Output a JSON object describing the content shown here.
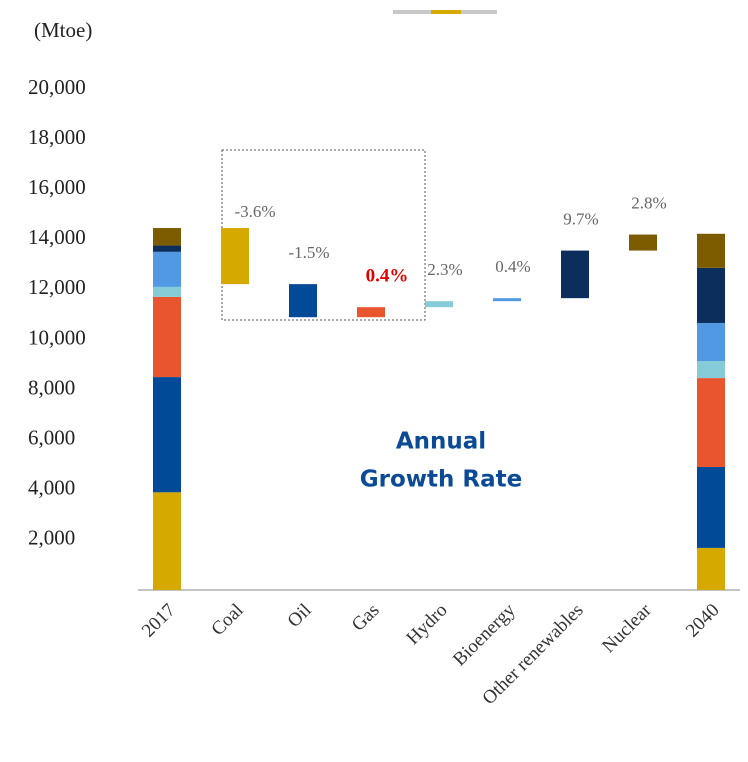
{
  "chart_data": {
    "type": "waterfall",
    "y_axis_label": "(Mtoe)",
    "categories": [
      "2017",
      "Coal",
      "Oil",
      "Gas",
      "Hydro",
      "Bioenergy",
      "Other renewables",
      "Nuclear",
      "2040"
    ],
    "colors": [
      "#d6a900",
      "#004a98",
      "#e8552f",
      "#86ccd8",
      "#5199e2",
      "#0c2e5c",
      "#7d5c00"
    ],
    "start_values": [
      3900,
      4600,
      3200,
      400,
      1400,
      250,
      700
    ],
    "changes": [
      -2240,
      -1320,
      400,
      240,
      120,
      1900,
      640
    ],
    "end_values": [
      1680,
      3230,
      3550,
      680,
      1520,
      2200,
      1360
    ],
    "growth_rate_labels": [
      "-3.6%",
      "-1.5%",
      "0.4%",
      "2.3%",
      "0.4%",
      "9.7%",
      "2.8%"
    ],
    "highlight_label": 2,
    "annotation": [
      "Annual",
      "Growth Rate"
    ],
    "ylim": [
      0,
      21000
    ],
    "yticks": [
      {
        "value": 2000,
        "label": "2,000"
      },
      {
        "value": 4000,
        "label": "4,000"
      },
      {
        "value": 6000,
        "label": "6,000"
      },
      {
        "value": 8000,
        "label": "8,000"
      },
      {
        "value": 10000,
        "label": "10,000"
      },
      {
        "value": 12000,
        "label": "12,000"
      },
      {
        "value": 14000,
        "label": "14,000"
      },
      {
        "value": 16000,
        "label": "16,000"
      },
      {
        "value": 18000,
        "label": "18,000"
      },
      {
        "value": 20000,
        "label": "20,000"
      }
    ],
    "grid": false
  }
}
